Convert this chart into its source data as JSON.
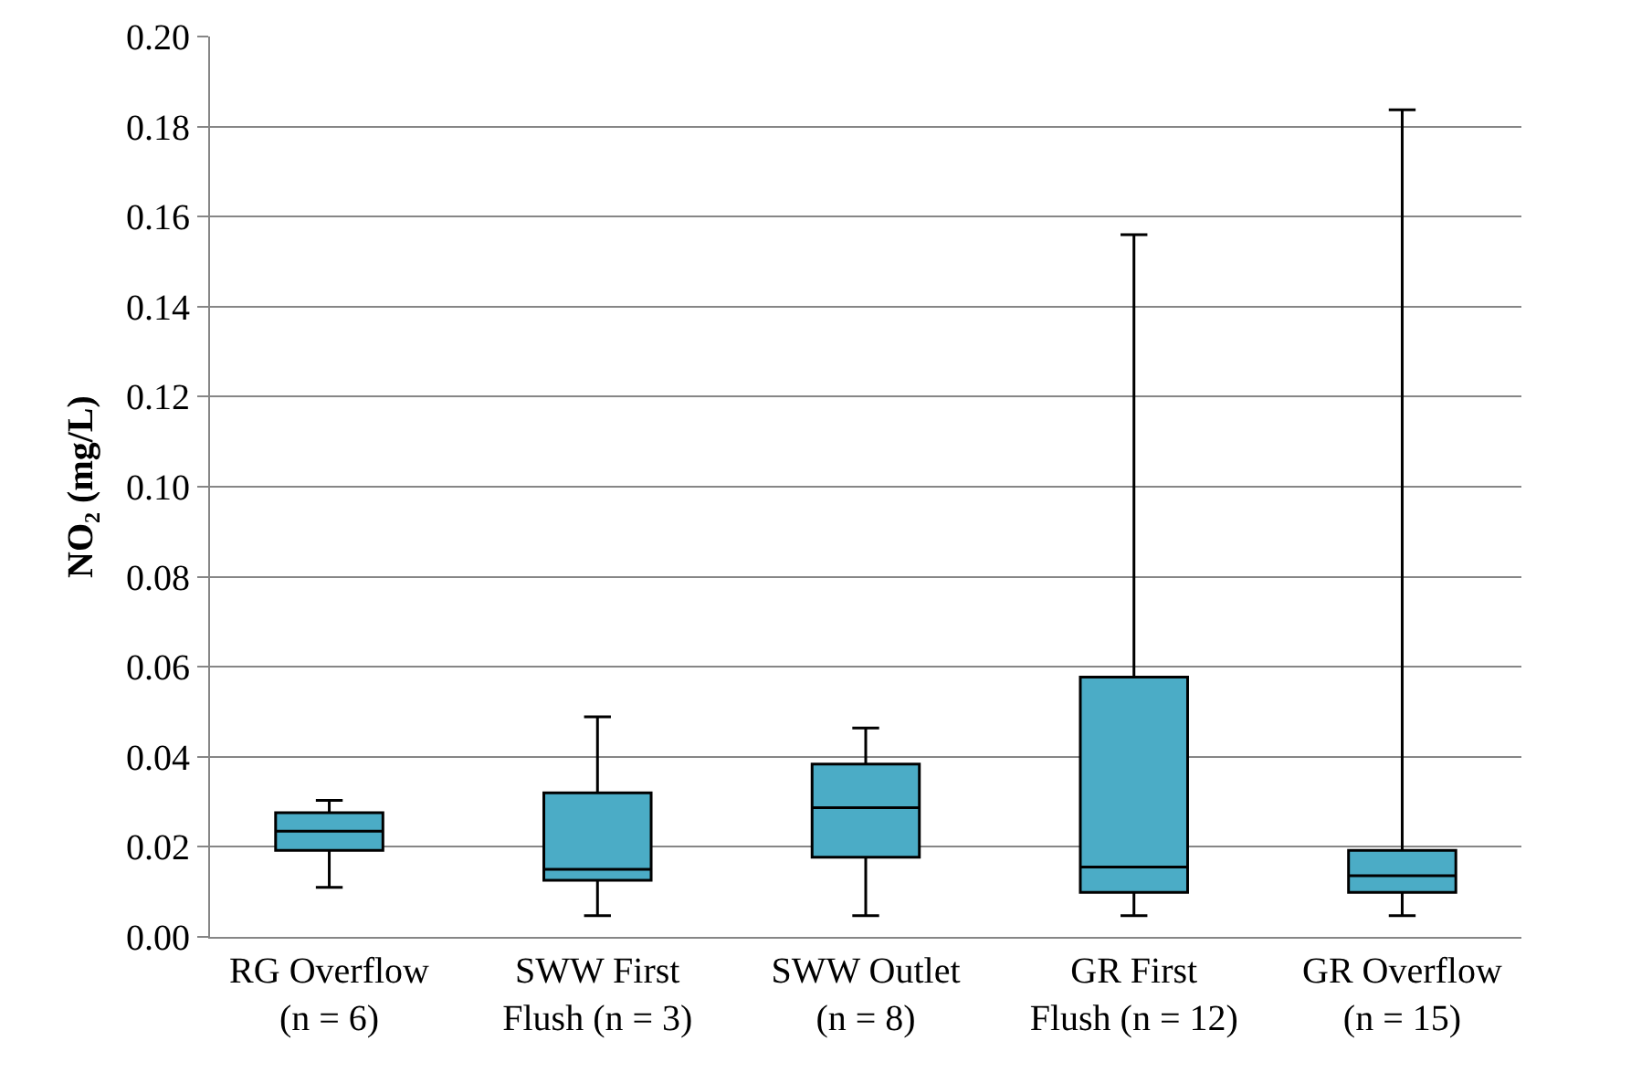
{
  "chart_data": {
    "type": "box",
    "ylabel": "NO₂ (mg/L)",
    "categories": [
      "RG Overflow\n(n = 6)",
      "SWW First\nFlush (n = 3)",
      "SWW Outlet\n(n = 8)",
      "GR First\nFlush (n = 12)",
      "GR Overflow\n(n = 15)"
    ],
    "color": "#4bacc6",
    "boxes": [
      {
        "low": 0.011,
        "q1": 0.0192,
        "median": 0.0235,
        "q3": 0.0276,
        "high": 0.0303
      },
      {
        "low": 0.0047,
        "q1": 0.0126,
        "median": 0.015,
        "q3": 0.032,
        "high": 0.0489
      },
      {
        "low": 0.0047,
        "q1": 0.0177,
        "median": 0.0287,
        "q3": 0.0384,
        "high": 0.0464
      },
      {
        "low": 0.0047,
        "q1": 0.0099,
        "median": 0.0155,
        "q3": 0.0577,
        "high": 0.156
      },
      {
        "low": 0.0047,
        "q1": 0.0099,
        "median": 0.0136,
        "q3": 0.0192,
        "high": 0.1837
      }
    ],
    "ylim": [
      0,
      0.2
    ],
    "yticks": [
      {
        "value": 0,
        "label": "0.00"
      },
      {
        "value": 0.02,
        "label": "0.02"
      },
      {
        "value": 0.04,
        "label": "0.04"
      },
      {
        "value": 0.06,
        "label": "0.06"
      },
      {
        "value": 0.08,
        "label": "0.08"
      },
      {
        "value": 0.1,
        "label": "0.10"
      },
      {
        "value": 0.12,
        "label": "0.12"
      },
      {
        "value": 0.14,
        "label": "0.14"
      },
      {
        "value": 0.16,
        "label": "0.16"
      },
      {
        "value": 0.18,
        "label": "0.18"
      },
      {
        "value": 0.2,
        "label": "0.20"
      }
    ],
    "grid": "y"
  }
}
